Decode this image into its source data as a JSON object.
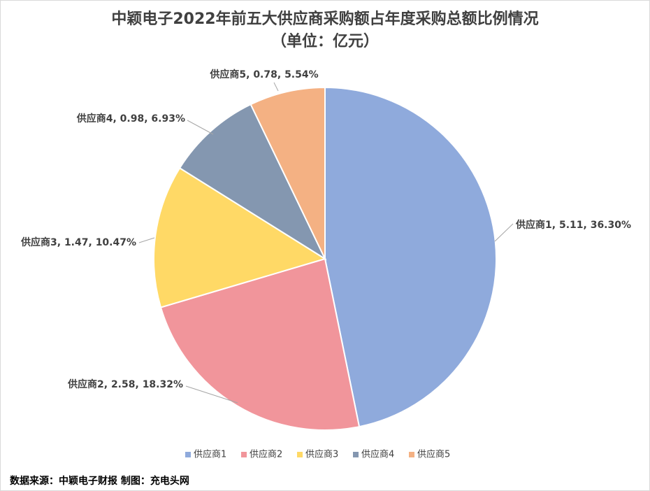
{
  "chart_data": {
    "type": "pie",
    "title": "中颖电子2022年前五大供应商采购额占年度采购总额比例情况",
    "subtitle": "（单位：亿元）",
    "categories": [
      "供应商1",
      "供应商2",
      "供应商3",
      "供应商4",
      "供应商5"
    ],
    "values": [
      5.11,
      2.58,
      1.47,
      0.98,
      0.78
    ],
    "share_labels": [
      "36.30%",
      "18.32%",
      "10.47%",
      "6.93%",
      "5.54%"
    ],
    "colors": [
      "#8faadc",
      "#f1959b",
      "#ffd966",
      "#8497b0",
      "#f4b183"
    ],
    "legend": "bottom",
    "source": "数据来源：中颖电子财报  制图：充电头网"
  }
}
